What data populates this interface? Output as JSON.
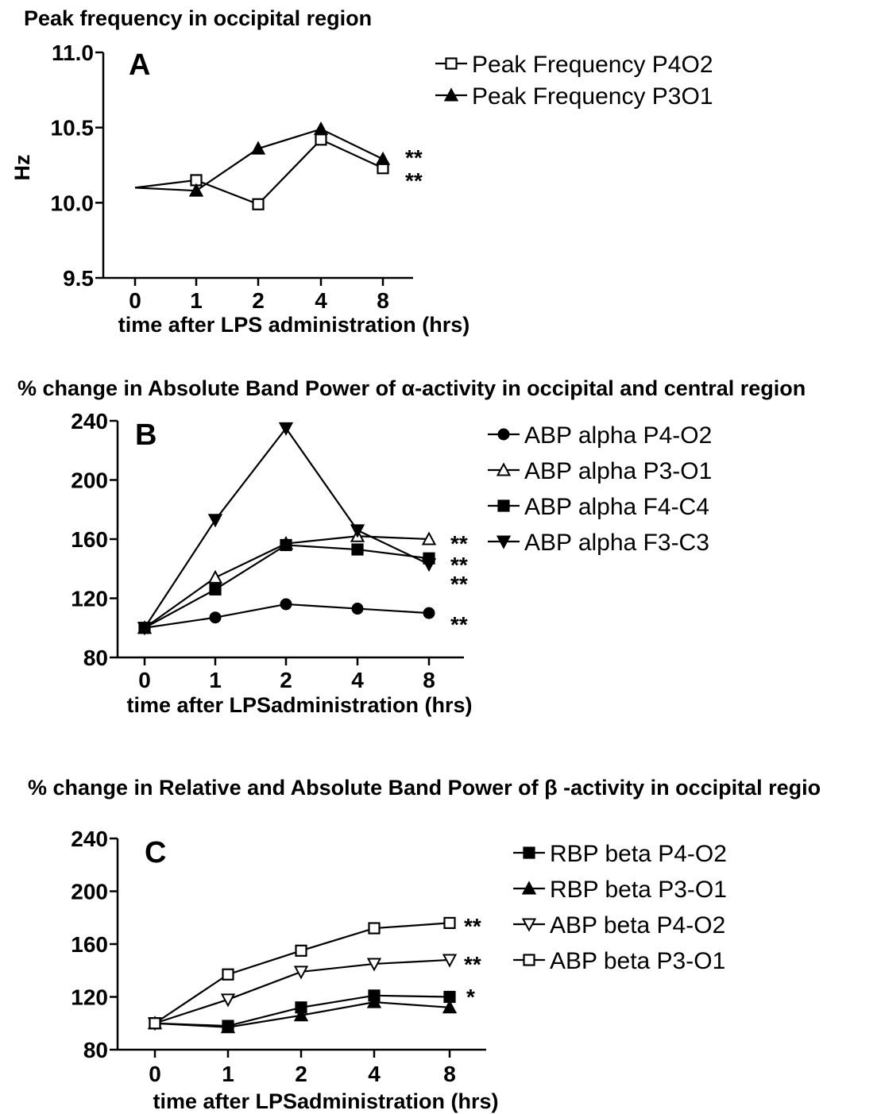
{
  "chart_data": [
    {
      "type": "line",
      "panel": "A",
      "title": "Peak frequency in occipital region",
      "xlabel": "time after LPS administration (hrs)",
      "ylabel": "Hz",
      "categories": [
        "0",
        "1",
        "2",
        "4",
        "8"
      ],
      "ylim": [
        9.5,
        11.0
      ],
      "yticks": [
        "9.5",
        "10.0",
        "10.5",
        "11.0"
      ],
      "grid": false,
      "legend_placement": "right",
      "series": [
        {
          "name": "Peak Frequency P4O2",
          "marker": "square-open",
          "values": [
            10.1,
            10.15,
            9.99,
            10.42,
            10.23
          ],
          "significance": "**"
        },
        {
          "name": "Peak Frequency P3O1",
          "marker": "triangle-filled",
          "values": [
            10.1,
            10.08,
            10.36,
            10.49,
            10.29
          ],
          "significance": "**"
        }
      ]
    },
    {
      "type": "line",
      "panel": "B",
      "title": "% change in Absolute Band Power of α-activity in occipital and central region",
      "xlabel": "time after LPSadministration (hrs)",
      "ylabel": "",
      "categories": [
        "0",
        "1",
        "2",
        "4",
        "8"
      ],
      "ylim": [
        80,
        240
      ],
      "yticks": [
        "80",
        "120",
        "160",
        "200",
        "240"
      ],
      "grid": false,
      "legend_placement": "right",
      "series": [
        {
          "name": "ABP alpha P4-O2",
          "marker": "circle-filled",
          "values": [
            100,
            107,
            116,
            113,
            110
          ],
          "significance": "**"
        },
        {
          "name": "ABP alpha P3-O1",
          "marker": "triangle-open",
          "values": [
            100,
            134,
            157,
            162,
            160
          ],
          "significance": "**"
        },
        {
          "name": "ABP alpha F4-C4",
          "marker": "square-filled",
          "values": [
            100,
            126,
            156,
            153,
            147
          ],
          "significance": "**"
        },
        {
          "name": "ABP alpha F3-C3",
          "marker": "triangle-down-filled",
          "values": [
            100,
            173,
            235,
            166,
            143
          ],
          "significance": "**"
        }
      ]
    },
    {
      "type": "line",
      "panel": "C",
      "title": "% change in Relative and Absolute Band Power of β -activity in occipital regio",
      "xlabel": "time after LPSadministration (hrs)",
      "ylabel": "",
      "categories": [
        "0",
        "1",
        "2",
        "4",
        "8"
      ],
      "ylim": [
        80,
        240
      ],
      "yticks": [
        "80",
        "120",
        "160",
        "200",
        "240"
      ],
      "grid": false,
      "legend_placement": "right",
      "series": [
        {
          "name": "RBP beta P4-O2",
          "marker": "square-filled",
          "values": [
            100,
            98,
            112,
            121,
            120
          ],
          "significance": "*"
        },
        {
          "name": "RBP beta P3-O1",
          "marker": "triangle-filled",
          "values": [
            100,
            97,
            106,
            116,
            112
          ],
          "significance": ""
        },
        {
          "name": "ABP beta P4-O2",
          "marker": "triangle-down-open",
          "values": [
            100,
            118,
            139,
            145,
            148
          ],
          "significance": "**"
        },
        {
          "name": "ABP beta P3-O1",
          "marker": "square-open",
          "values": [
            100,
            137,
            155,
            172,
            176
          ],
          "significance": "**"
        }
      ]
    }
  ]
}
